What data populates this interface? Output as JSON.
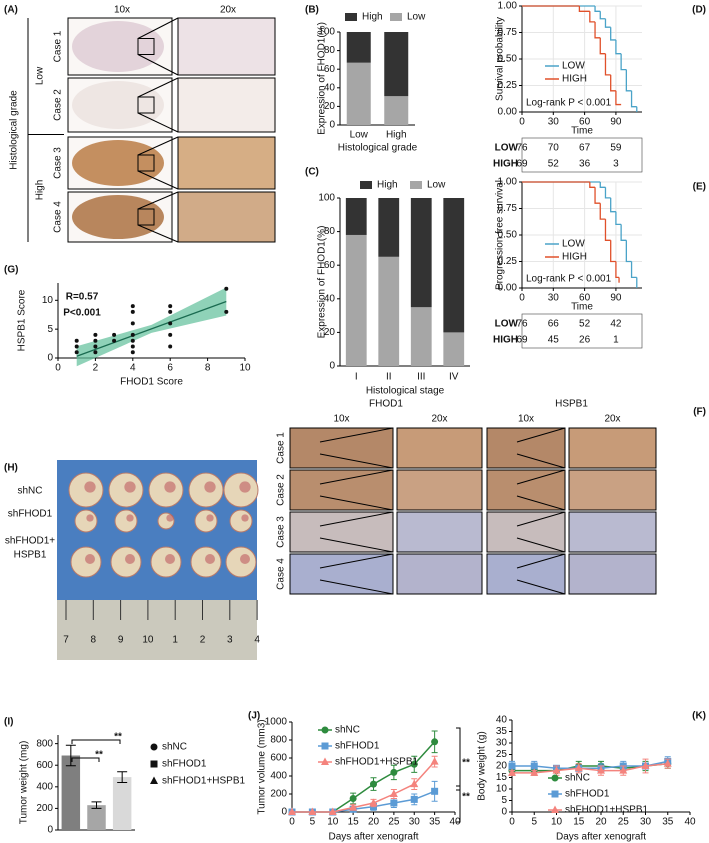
{
  "panel_a": {
    "panel": "(A)",
    "columns": [
      "10x",
      "20x"
    ],
    "axis_title": "Histological grade",
    "groups": [
      "Low",
      "High"
    ],
    "cases": [
      "Case 1",
      "Case 2",
      "Case 3",
      "Case 4"
    ]
  },
  "panel_f": {
    "panel": "(F)",
    "markers": [
      "FHOD1",
      "HSPB1"
    ],
    "columns": [
      "10x",
      "20x",
      "10x",
      "20x"
    ],
    "cases": [
      "Case 1",
      "Case 2",
      "Case 3",
      "Case 4"
    ]
  },
  "panel_h": {
    "panel": "(H)",
    "groups": [
      [
        "shNC"
      ],
      [
        "shFHOD1"
      ],
      [
        "shFHOD1+",
        "HSPB1"
      ]
    ],
    "ruler": [
      "7",
      "8",
      "9",
      "10",
      "1",
      "2",
      "3",
      "4"
    ]
  },
  "chart_data": [
    {
      "type": "bar",
      "stacked": true,
      "panel": "(B)",
      "ylabel": "Expression of FHOD1(%)",
      "xlabel": "Histological grade",
      "categories": [
        "Low",
        "High"
      ],
      "series": [
        {
          "name": "High",
          "color": "#333333",
          "values": [
            33,
            69
          ]
        },
        {
          "name": "Low",
          "color": "#a6a6a6",
          "values": [
            67,
            31
          ]
        }
      ],
      "ylim": [
        0,
        100
      ],
      "yticks": [
        0,
        20,
        40,
        60,
        80,
        100
      ]
    },
    {
      "type": "bar",
      "stacked": true,
      "panel": "(C)",
      "ylabel": "Expression of FHOD1(%)",
      "xlabel": "Histological stage",
      "categories": [
        "I",
        "II",
        "III",
        "IV"
      ],
      "series": [
        {
          "name": "High",
          "color": "#333333",
          "values": [
            22,
            35,
            65,
            80
          ]
        },
        {
          "name": "Low",
          "color": "#a6a6a6",
          "values": [
            78,
            65,
            35,
            20
          ]
        }
      ],
      "ylim": [
        0,
        100
      ],
      "yticks": [
        0,
        20,
        40,
        60,
        80,
        100
      ]
    },
    {
      "type": "line",
      "step": true,
      "panel": "(D)",
      "ylabel": "Survival probability",
      "xlabel": "Time",
      "annotation": "Log-rank P < 0.001",
      "grid": true,
      "series": [
        {
          "name": "LOW",
          "color": "#4aa3c8",
          "x": [
            0,
            70,
            75,
            80,
            85,
            90,
            95,
            100,
            105,
            110
          ],
          "values": [
            1,
            0.95,
            0.88,
            0.8,
            0.68,
            0.55,
            0.4,
            0.2,
            0.05,
            0
          ]
        },
        {
          "name": "HIGH",
          "color": "#e0502a",
          "x": [
            0,
            55,
            65,
            70,
            75,
            80,
            85,
            90,
            95
          ],
          "values": [
            1,
            0.95,
            0.85,
            0.7,
            0.55,
            0.35,
            0.2,
            0.07,
            0.07
          ]
        }
      ],
      "xlim": [
        0,
        115
      ],
      "xticks": [
        0,
        30,
        60,
        90
      ],
      "ylim": [
        0,
        1
      ],
      "yticks": [
        {
          "value": 0,
          "label": "0.00"
        },
        0.25,
        {
          "value": 0.5,
          "label": "0.50"
        },
        0.75,
        {
          "value": 1,
          "label": "1.00"
        }
      ],
      "risk_table": [
        {
          "name": "LOW",
          "color": "#4aa3c8",
          "values": [
            76,
            70,
            67,
            59
          ]
        },
        {
          "name": "HIGH",
          "color": "#e0502a",
          "values": [
            69,
            52,
            36,
            3
          ]
        }
      ]
    },
    {
      "type": "line",
      "step": true,
      "panel": "(E)",
      "ylabel": "Progression free survival",
      "xlabel": "Time",
      "annotation": "Log-rank P < 0.001",
      "grid": true,
      "series": [
        {
          "name": "LOW",
          "color": "#4aa3c8",
          "x": [
            0,
            75,
            80,
            85,
            90,
            95,
            100,
            105,
            110
          ],
          "values": [
            1,
            0.95,
            0.85,
            0.72,
            0.6,
            0.45,
            0.25,
            0.1,
            0
          ]
        },
        {
          "name": "HIGH",
          "color": "#e0502a",
          "x": [
            0,
            65,
            70,
            75,
            80,
            85,
            90,
            93
          ],
          "values": [
            1,
            0.95,
            0.8,
            0.65,
            0.45,
            0.25,
            0.1,
            0.05
          ]
        }
      ],
      "xlim": [
        0,
        115
      ],
      "xticks": [
        0,
        30,
        60,
        90
      ],
      "ylim": [
        0,
        1
      ],
      "yticks": [
        {
          "value": 0,
          "label": "0.00"
        },
        0.25,
        {
          "value": 0.5,
          "label": "0.50"
        },
        0.75,
        {
          "value": 1,
          "label": "1.00"
        }
      ],
      "risk_table": [
        {
          "name": "LOW",
          "color": "#4aa3c8",
          "values": [
            76,
            66,
            52,
            42
          ]
        },
        {
          "name": "HIGH",
          "color": "#e0502a",
          "values": [
            69,
            45,
            26,
            1
          ]
        }
      ]
    },
    {
      "type": "scatter",
      "panel": "(G)",
      "ylabel": "HSPB1 Score",
      "xlabel": "FHOD1 Score",
      "annotations": [
        "R=0.57",
        "P<0.001"
      ],
      "color": "#111111",
      "x": [
        1,
        1,
        1,
        2,
        2,
        2,
        2,
        3,
        3,
        4,
        4,
        4,
        4,
        4,
        4,
        4,
        6,
        6,
        6,
        6,
        6,
        9,
        9
      ],
      "values": [
        1,
        2,
        3,
        1,
        2,
        3,
        4,
        3,
        4,
        1,
        2,
        3,
        4,
        6,
        8,
        9,
        2,
        4,
        6,
        8,
        9,
        8,
        12
      ],
      "trend": {
        "color": "#1a6b50",
        "band_color": "#5fbf9a",
        "x": [
          1,
          9
        ],
        "values": [
          0.3,
          9.8
        ]
      },
      "xlim": [
        0,
        10
      ],
      "xticks": [
        0,
        2,
        4,
        6,
        8,
        10
      ],
      "ylim": [
        0,
        13
      ],
      "yticks": [
        0,
        5,
        10
      ]
    },
    {
      "type": "bar",
      "panel": "(I)",
      "ylabel": "Tumor weight (mg)",
      "annotations": [
        "**",
        "**"
      ],
      "categories": [
        "shNC",
        "shFHOD1",
        "shFHOD1+HSPB1"
      ],
      "values": [
        690,
        230,
        490
      ],
      "errors": [
        95,
        30,
        50
      ],
      "colors": [
        "#7f7f7f",
        "#a6a6a6",
        "#d9d9d9"
      ],
      "markers": [
        "circle",
        "square",
        "triangle"
      ],
      "ylim": [
        0,
        880
      ],
      "yticks": [
        0,
        200,
        400,
        600,
        800
      ]
    },
    {
      "type": "line",
      "panel": "(J)",
      "ylabel": "Tumor volume (mm3)",
      "xlabel": "Days after xenograft",
      "annotations": [
        "**",
        "**"
      ],
      "x": [
        0,
        5,
        10,
        15,
        20,
        25,
        30,
        35
      ],
      "series": [
        {
          "name": "shNC",
          "color": "#2e8b3e",
          "marker": "circle",
          "values": [
            0,
            0,
            0,
            150,
            310,
            440,
            530,
            780
          ],
          "errors": [
            0,
            0,
            0,
            60,
            70,
            80,
            90,
            120
          ]
        },
        {
          "name": "shFHOD1",
          "color": "#5b9bd5",
          "marker": "square",
          "values": [
            0,
            0,
            0,
            30,
            60,
            100,
            140,
            230
          ],
          "errors": [
            0,
            0,
            0,
            30,
            40,
            50,
            60,
            110
          ]
        },
        {
          "name": "shFHOD1+HSPB1",
          "color": "#f4837d",
          "marker": "triangle",
          "values": [
            0,
            0,
            0,
            50,
            100,
            200,
            310,
            560
          ],
          "errors": [
            0,
            0,
            0,
            30,
            40,
            50,
            60,
            60
          ]
        }
      ],
      "xlim": [
        0,
        40
      ],
      "xticks": [
        0,
        5,
        10,
        15,
        20,
        25,
        30,
        35,
        40
      ],
      "ylim": [
        0,
        1000
      ],
      "yticks": [
        0,
        200,
        400,
        600,
        800,
        1000
      ]
    },
    {
      "type": "line",
      "panel": "(K)",
      "ylabel": "Body weight (g)",
      "xlabel": "Days after xenograft",
      "x": [
        0,
        5,
        10,
        15,
        20,
        25,
        30,
        35
      ],
      "series": [
        {
          "name": "shNC",
          "color": "#2e8b3e",
          "marker": "circle",
          "values": [
            18,
            18,
            18,
            20,
            20,
            19,
            20,
            21
          ],
          "errors": [
            2,
            2,
            1,
            2,
            2,
            1,
            2,
            2
          ]
        },
        {
          "name": "shFHOD1",
          "color": "#5b9bd5",
          "marker": "square",
          "values": [
            20,
            20,
            19,
            19,
            19,
            20,
            20,
            22
          ],
          "errors": [
            2,
            2,
            1,
            1,
            2,
            2,
            1,
            2
          ]
        },
        {
          "name": "shFHOD1+HSPB1",
          "color": "#f4837d",
          "marker": "triangle",
          "values": [
            17,
            17,
            18,
            19,
            18,
            18,
            20,
            21
          ],
          "errors": [
            1,
            1,
            2,
            2,
            2,
            2,
            3,
            2
          ]
        }
      ],
      "xlim": [
        0,
        40
      ],
      "xticks": [
        0,
        5,
        10,
        15,
        20,
        25,
        30,
        35,
        40
      ],
      "ylim": [
        0,
        40
      ],
      "yticks": [
        0,
        5,
        10,
        15,
        20,
        25,
        30,
        35,
        40
      ]
    }
  ]
}
